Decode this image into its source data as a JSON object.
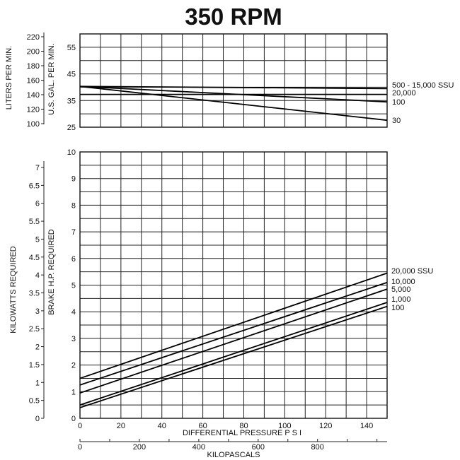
{
  "title": "350 RPM",
  "chart_data": [
    {
      "type": "line",
      "ylabel": "U.S. GAL. PER MIN.",
      "ylabel_secondary": "LITERS PER MIN.",
      "x_range": [
        0,
        150
      ],
      "ylim": [
        25,
        60
      ],
      "y_ticks": [
        "55",
        "45",
        "35",
        "25"
      ],
      "y_tick_values": [
        55,
        45,
        35,
        25
      ],
      "y_secondary_ticks": [
        "220",
        "200",
        "180",
        "160",
        "140",
        "120",
        "100"
      ],
      "y_secondary_values": [
        220,
        200,
        180,
        160,
        140,
        120,
        100
      ],
      "grid": true,
      "series": [
        {
          "name": "500 - 15,000 SSU",
          "x": [
            0,
            150
          ],
          "y": [
            40.3,
            39.5
          ]
        },
        {
          "name": "20,000",
          "x": [
            0,
            150
          ],
          "y": [
            37.3,
            37.3
          ]
        },
        {
          "name": "100",
          "x": [
            0,
            150
          ],
          "y": [
            40.3,
            34.5
          ]
        },
        {
          "name": "30",
          "x": [
            0,
            150
          ],
          "y": [
            40.3,
            27.6
          ]
        }
      ]
    },
    {
      "type": "line",
      "ylabel": "BRAKE  H.P.  REQUIRED",
      "ylabel_secondary": "KILOWATTS  REQUIRED",
      "xlabel": "DIFFERENTIAL  PRESSURE  P S I",
      "xlabel_secondary": "KILOPASCALS",
      "x_ticks": [
        "0",
        "20",
        "40",
        "60",
        "80",
        "100",
        "120",
        "140"
      ],
      "x_tick_values": [
        0,
        20,
        40,
        60,
        80,
        100,
        120,
        140
      ],
      "x_secondary_ticks": [
        "0",
        "200",
        "400",
        "600",
        "800"
      ],
      "x_secondary_values": [
        0,
        200,
        400,
        600,
        800
      ],
      "x_range": [
        0,
        150
      ],
      "ylim": [
        0,
        10
      ],
      "y_ticks": [
        "0",
        "1",
        "2",
        "3",
        "4",
        "5",
        "6",
        "7",
        "8",
        "9",
        "10"
      ],
      "y_tick_values": [
        0,
        1,
        2,
        3,
        4,
        5,
        6,
        7,
        8,
        9,
        10
      ],
      "y_secondary_ticks": [
        "0",
        "0.5",
        "1",
        "1.5",
        "2",
        "2.5",
        "3",
        "3.5",
        "4",
        "4.5",
        "5",
        "5.5",
        "6",
        "6.5",
        "7"
      ],
      "y_secondary_values": [
        0,
        0.5,
        1,
        1.5,
        2,
        2.5,
        3,
        3.5,
        4,
        4.5,
        5,
        5.5,
        6,
        6.5,
        7
      ],
      "grid": true,
      "series": [
        {
          "name": "20,000 SSU",
          "x": [
            0,
            150
          ],
          "y": [
            1.5,
            5.45
          ]
        },
        {
          "name": "10,000",
          "x": [
            0,
            150
          ],
          "y": [
            1.25,
            5.1
          ]
        },
        {
          "name": "5,000",
          "x": [
            0,
            150
          ],
          "y": [
            0.95,
            4.85
          ]
        },
        {
          "name": "1,000",
          "x": [
            0,
            150
          ],
          "y": [
            0.5,
            4.35
          ]
        },
        {
          "name": "100",
          "x": [
            0,
            150
          ],
          "y": [
            0.4,
            4.2
          ]
        }
      ]
    }
  ]
}
